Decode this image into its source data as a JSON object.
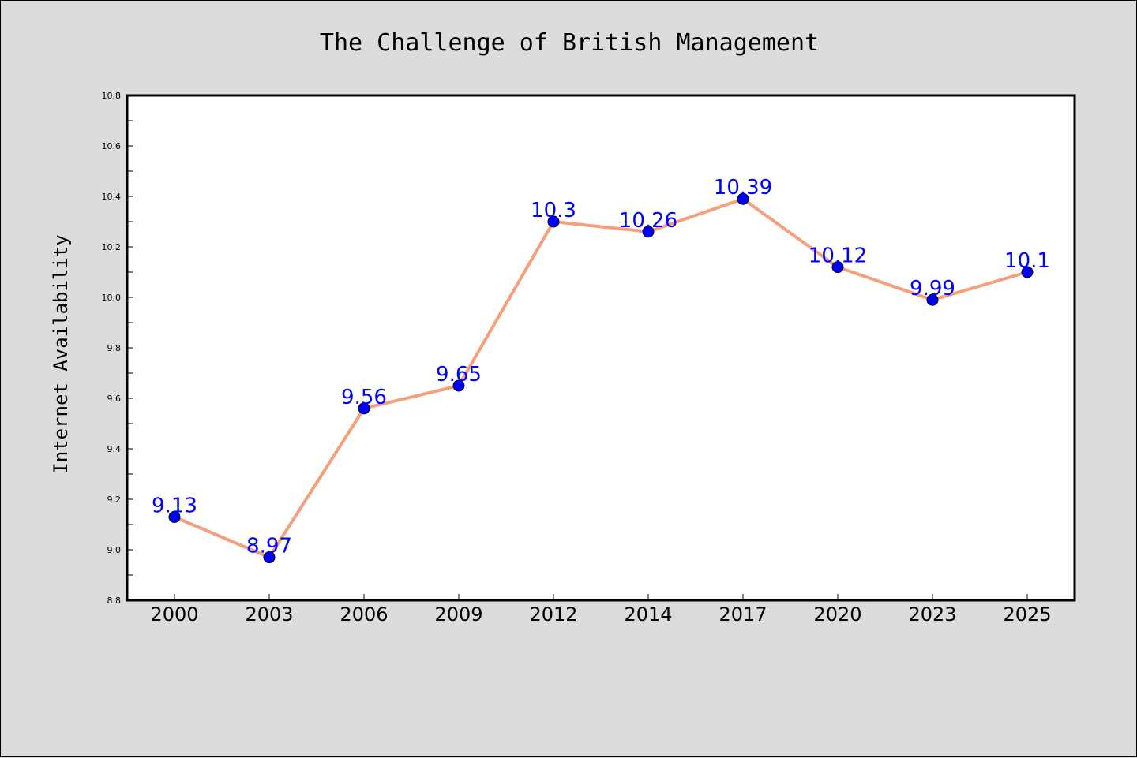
{
  "chart_data": {
    "type": "line",
    "title": "The Challenge of British Management",
    "xlabel": "",
    "ylabel": "Internet Availability",
    "categories": [
      "2000",
      "2003",
      "2006",
      "2009",
      "2012",
      "2014",
      "2017",
      "2020",
      "2023",
      "2025"
    ],
    "series": [
      {
        "values": [
          9.13,
          8.97,
          9.56,
          9.65,
          10.3,
          10.26,
          10.39,
          10.12,
          9.99,
          10.1
        ],
        "data_labels": [
          "9.13",
          "8.97",
          "9.56",
          "9.65",
          "10.3",
          "10.26",
          "10.39",
          "10.12",
          "9.99",
          "10.1"
        ]
      }
    ],
    "ylim": [
      8.8,
      10.8
    ],
    "yticks": [
      "8.8",
      "9.0",
      "9.2",
      "9.4",
      "9.6",
      "9.8",
      "10.0",
      "10.2",
      "10.4",
      "10.6",
      "10.8"
    ],
    "grid": false,
    "colors": {
      "line": "#f4a07c",
      "marker": "#0000ff",
      "data_label": "#0000ff",
      "background": "#dcdcdc",
      "plot_background": "#ffffff"
    }
  }
}
